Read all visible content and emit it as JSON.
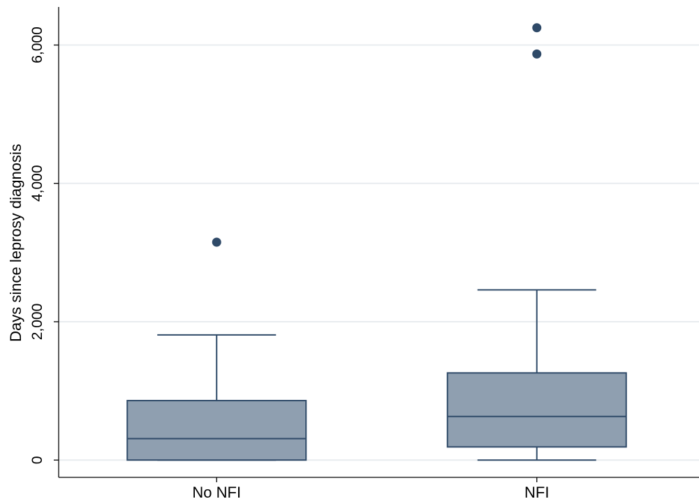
{
  "chart_data": {
    "type": "box",
    "ylabel": "Days since leprosy diagnosis",
    "ylim": [
      -250,
      6550
    ],
    "yticks": [
      0,
      2000,
      4000,
      6000
    ],
    "ytick_labels": [
      "0",
      "2,000",
      "4,000",
      "6,000"
    ],
    "grid": true,
    "categories": [
      "No NFI",
      "NFI"
    ],
    "boxes": [
      {
        "category": "No NFI",
        "min": 0,
        "q1": 0,
        "median": 310,
        "q3": 860,
        "max": 1810,
        "outliers": [
          3150
        ]
      },
      {
        "category": "NFI",
        "min": 0,
        "q1": 190,
        "median": 630,
        "q3": 1260,
        "max": 2460,
        "outliers": [
          5870,
          6250
        ]
      }
    ],
    "colors": {
      "box_fill": "#8f9fb0",
      "box_stroke": "#2f4a68",
      "outlier": "#2f4a68",
      "grid": "#e8ecef",
      "axis": "#000000"
    }
  }
}
